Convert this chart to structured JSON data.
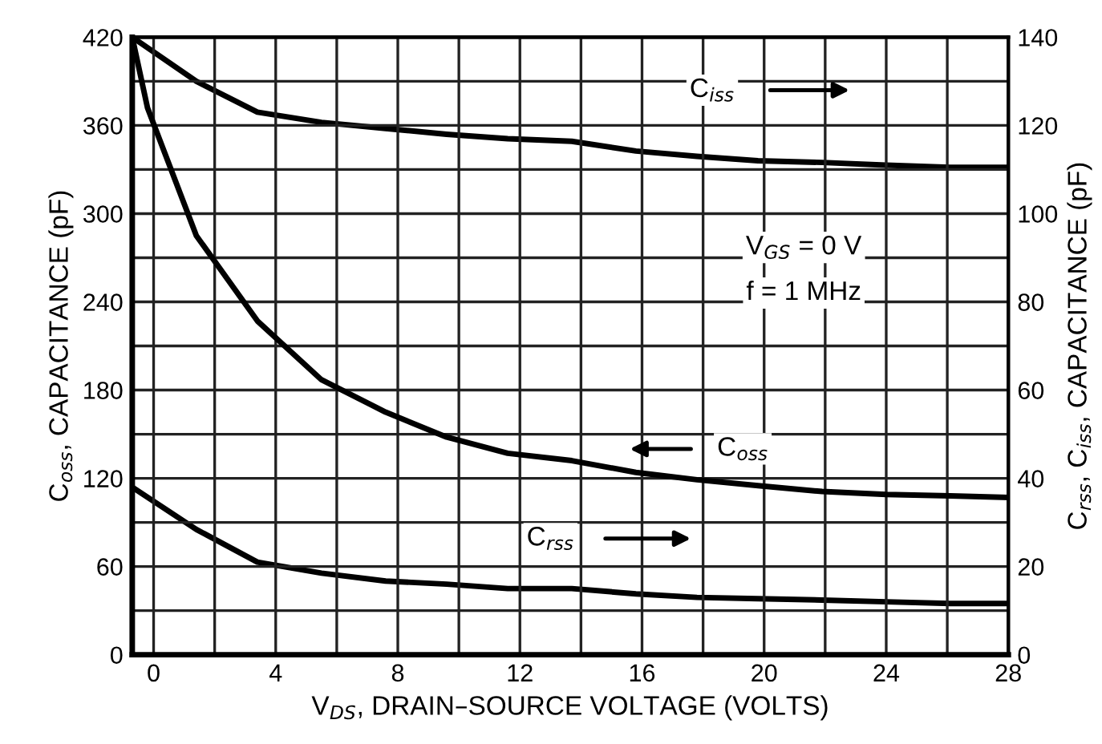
{
  "chart_data": {
    "type": "line",
    "xlabel": "V$_{DS}$, DRAIN–SOURCE VOLTAGE (VOLTS)",
    "ylabel": "C$_{oss}$, CAPACITANCE (pF)",
    "y2label": "C$_{rss}$, C$_{iss}$, CAPACITANCE (pF)",
    "annotations": [
      "V$_{GS}$ = 0 V",
      "f = 1 MHz"
    ],
    "xlim": [
      -0.7,
      28
    ],
    "xticks": [
      0,
      {
        "value": 2,
        "label": null
      },
      4,
      {
        "value": 6,
        "label": null
      },
      8,
      {
        "value": 10,
        "label": null
      },
      12,
      {
        "value": 14,
        "label": null
      },
      16,
      {
        "value": 18,
        "label": null
      },
      20,
      {
        "value": 22,
        "label": null
      },
      24,
      {
        "value": 26,
        "label": null
      },
      28
    ],
    "ylim": [
      0,
      420
    ],
    "yticks": [
      0,
      {
        "value": 30,
        "label": null
      },
      60,
      {
        "value": 90,
        "label": null
      },
      120,
      {
        "value": 150,
        "label": null
      },
      180,
      {
        "value": 210,
        "label": null
      },
      240,
      {
        "value": 270,
        "label": null
      },
      300,
      {
        "value": 330,
        "label": null
      },
      360,
      {
        "value": 390,
        "label": null
      },
      420
    ],
    "y2lim": [
      0,
      140
    ],
    "y2ticks": [
      0,
      20,
      40,
      60,
      80,
      100,
      120,
      140
    ],
    "grid": true,
    "legend": "right",
    "line_style": "solid",
    "marker": "none",
    "series": [
      {
        "name": "C$_{iss}$",
        "color": "#000000",
        "axis": "y2",
        "x": [
          -0.7,
          1.4,
          3.4,
          5.5,
          7.6,
          9.6,
          11.6,
          13.7,
          15.8,
          17.8,
          19.8,
          21.9,
          24.0,
          26.1,
          28
        ],
        "values": [
          140,
          130,
          123,
          120.7,
          119.3,
          118,
          117,
          116.4,
          114.2,
          113,
          112,
          111.6,
          111,
          110.5,
          110.5
        ]
      },
      {
        "name": "C$_{oss}$",
        "color": "#000000",
        "axis": "y",
        "x": [
          -0.7,
          -0.2,
          1.4,
          3.4,
          5.5,
          7.6,
          9.6,
          11.6,
          13.7,
          15.8,
          17.8,
          19.8,
          21.9,
          24.0,
          26.1,
          28
        ],
        "values": [
          420,
          372,
          285,
          227,
          187,
          165,
          148,
          137,
          132,
          124,
          119,
          115,
          111,
          109,
          108,
          107
        ]
      },
      {
        "name": "C$_{rss}$",
        "color": "#000000",
        "axis": "y2",
        "x": [
          -0.7,
          1.4,
          3.4,
          5.5,
          7.6,
          9.6,
          11.6,
          13.7,
          15.8,
          17.8,
          19.8,
          21.9,
          24.0,
          26.1,
          28
        ],
        "values": [
          38,
          28.4,
          21,
          18.5,
          16.7,
          16,
          15,
          15,
          13.8,
          13,
          12.7,
          12.4,
          12,
          11.6,
          11.6
        ]
      }
    ]
  }
}
